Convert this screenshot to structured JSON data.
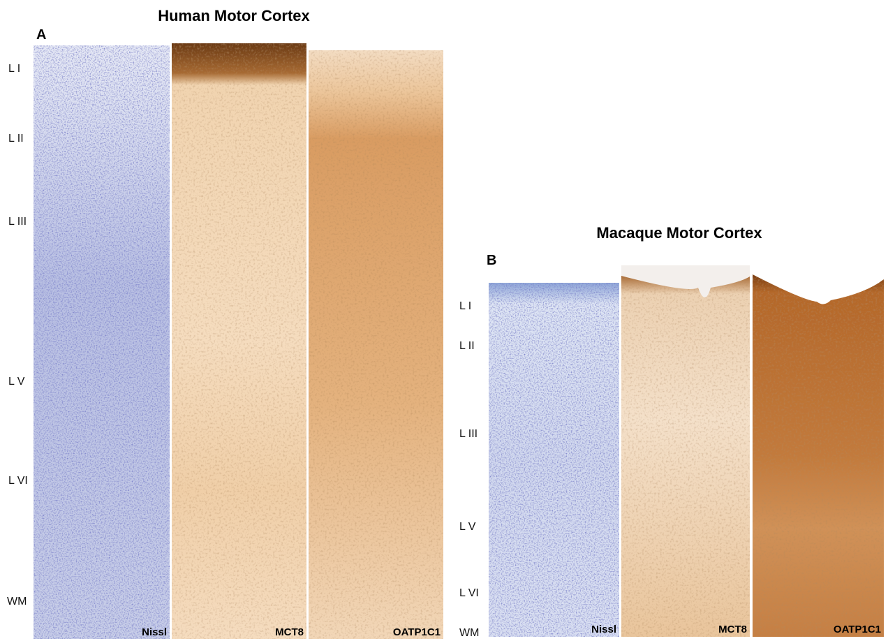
{
  "panels": [
    {
      "letter": "A",
      "title": "Human Motor Cortex",
      "layers": [
        "L I",
        "L II",
        "L III",
        "L V",
        "L VI",
        "WM"
      ],
      "stains": [
        "Nissl",
        "MCT8",
        "OATP1C1"
      ]
    },
    {
      "letter": "B",
      "title": "Macaque Motor Cortex",
      "layers": [
        "L I",
        "L II",
        "L III",
        "L V",
        "L VI",
        "WM"
      ],
      "stains": [
        "Nissl",
        "MCT8",
        "OATP1C1"
      ]
    }
  ]
}
